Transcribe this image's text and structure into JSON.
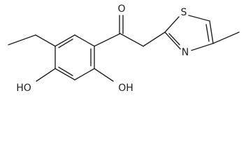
{
  "atoms": {
    "carbonyl_oxygen": "O",
    "sulfur": "S",
    "nitrogen": "N",
    "hydroxyl_left": "HO",
    "hydroxyl_right": "OH"
  }
}
